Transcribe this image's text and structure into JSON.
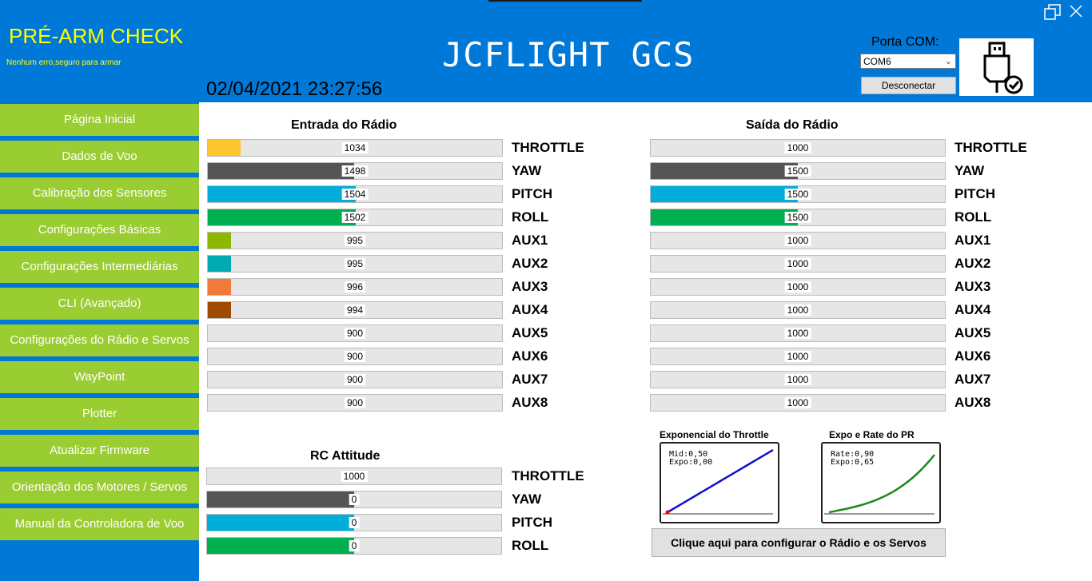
{
  "header": {
    "prearm_title": "PRÉ-ARM CHECK",
    "prearm_status": "Nenhum erro,seguro para armar",
    "datetime": "02/04/2021 23:27:56",
    "app_title": "JCFLIGHT GCS",
    "porta_label": "Porta COM:",
    "com_value": "COM6",
    "disconnect_label": "Desconectar"
  },
  "sidebar": {
    "items": [
      {
        "label": "Página Inicial"
      },
      {
        "label": "Dados de Voo"
      },
      {
        "label": "Calibração dos Sensores"
      },
      {
        "label": "Configurações Básicas"
      },
      {
        "label": "Configurações Intermediárias"
      },
      {
        "label": "CLI (Avançado)"
      },
      {
        "label": "Configurações do Rádio e Servos"
      },
      {
        "label": "WayPoint"
      },
      {
        "label": "Plotter"
      },
      {
        "label": "Atualizar Firmware"
      },
      {
        "label": "Orientação dos Motores / Servos"
      },
      {
        "label": "Manual da Controladora de Voo"
      }
    ]
  },
  "radio_input": {
    "title": "Entrada do Rádio",
    "range": [
      900,
      2100
    ],
    "channels": [
      {
        "label": "THROTTLE",
        "value": 1034,
        "color": "#ffc62e"
      },
      {
        "label": "YAW",
        "value": 1498,
        "color": "#555555"
      },
      {
        "label": "PITCH",
        "value": 1504,
        "color": "#00aedb"
      },
      {
        "label": "ROLL",
        "value": 1502,
        "color": "#00b050"
      },
      {
        "label": "AUX1",
        "value": 995,
        "color": "#8db600"
      },
      {
        "label": "AUX2",
        "value": 995,
        "color": "#00aab0"
      },
      {
        "label": "AUX3",
        "value": 996,
        "color": "#f07a3a"
      },
      {
        "label": "AUX4",
        "value": 994,
        "color": "#a04a00"
      },
      {
        "label": "AUX5",
        "value": 900,
        "color": "#999999"
      },
      {
        "label": "AUX6",
        "value": 900,
        "color": "#999999"
      },
      {
        "label": "AUX7",
        "value": 900,
        "color": "#999999"
      },
      {
        "label": "AUX8",
        "value": 900,
        "color": "#999999"
      }
    ]
  },
  "radio_output": {
    "title": "Saída do Rádio",
    "range": [
      1000,
      2000
    ],
    "channels": [
      {
        "label": "THROTTLE",
        "value": 1000,
        "color": "#ffc62e"
      },
      {
        "label": "YAW",
        "value": 1500,
        "color": "#555555"
      },
      {
        "label": "PITCH",
        "value": 1500,
        "color": "#00aedb"
      },
      {
        "label": "ROLL",
        "value": 1500,
        "color": "#00b050"
      },
      {
        "label": "AUX1",
        "value": 1000,
        "color": "#8db600"
      },
      {
        "label": "AUX2",
        "value": 1000,
        "color": "#00aab0"
      },
      {
        "label": "AUX3",
        "value": 1000,
        "color": "#f07a3a"
      },
      {
        "label": "AUX4",
        "value": 1000,
        "color": "#a04a00"
      },
      {
        "label": "AUX5",
        "value": 1000,
        "color": "#999999"
      },
      {
        "label": "AUX6",
        "value": 1000,
        "color": "#999999"
      },
      {
        "label": "AUX7",
        "value": 1000,
        "color": "#999999"
      },
      {
        "label": "AUX8",
        "value": 1000,
        "color": "#999999"
      }
    ]
  },
  "rc_attitude": {
    "title": "RC Attitude",
    "channels": [
      {
        "label": "THROTTLE",
        "value": "1000",
        "fraction": 0,
        "color": "#ffc62e"
      },
      {
        "label": "YAW",
        "value": "0",
        "fraction": 0.5,
        "color": "#555555"
      },
      {
        "label": "PITCH",
        "value": "0",
        "fraction": 0.5,
        "color": "#00aedb"
      },
      {
        "label": "ROLL",
        "value": "0",
        "fraction": 0.5,
        "color": "#00b050"
      }
    ]
  },
  "throttle_curve": {
    "title": "Exponencial do Throttle",
    "mid_label": "Mid:0,50",
    "expo_label": "Expo:0,00",
    "mid": 0.5,
    "expo": 0.0,
    "color": "#1010cc"
  },
  "pr_curve": {
    "title": "Expo e Rate do PR",
    "rate_label": "Rate:0,90",
    "expo_label": "Expo:0,65",
    "rate": 0.9,
    "expo": 0.65,
    "color": "#1a8a1a"
  },
  "config_button_label": "Clique aqui para configurar o Rádio e os Servos"
}
